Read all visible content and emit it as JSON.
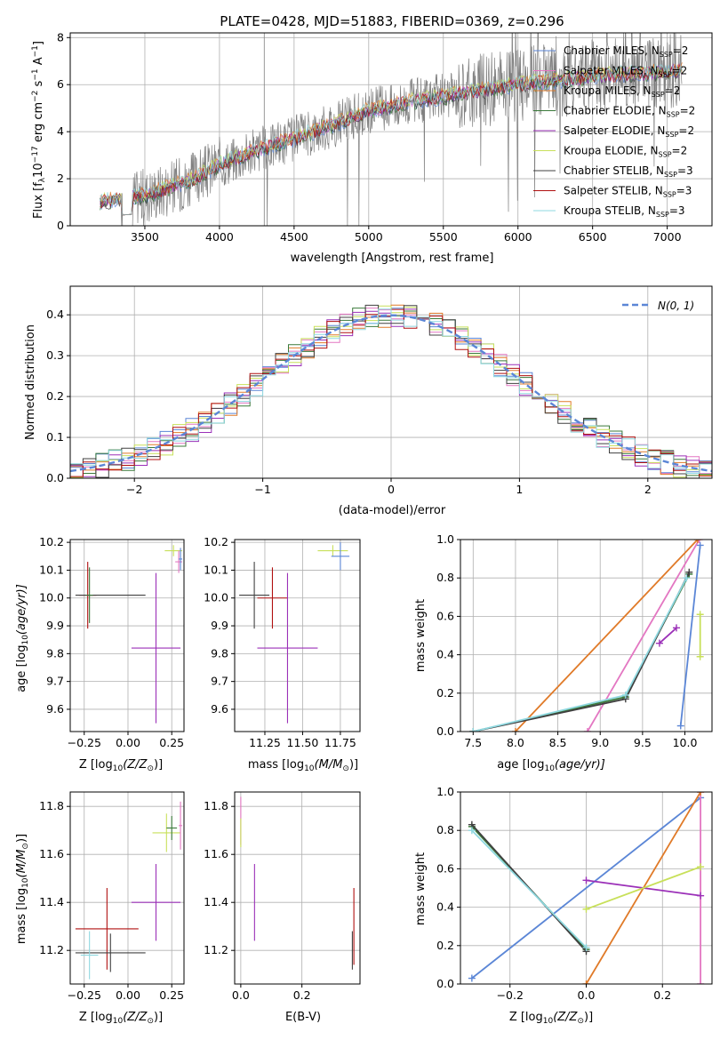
{
  "models": [
    {
      "label": "Chabrier MILES, N",
      "sub": "SSP",
      "tail": "=2",
      "color": "#5b86d6"
    },
    {
      "label": "Salpeter MILES, N",
      "sub": "SSP",
      "tail": "=2",
      "color": "#e377c2"
    },
    {
      "label": "Kroupa MILES, N",
      "sub": "SSP",
      "tail": "=2",
      "color": "#e07a28"
    },
    {
      "label": "Chabrier ELODIE, N",
      "sub": "SSP",
      "tail": "=2",
      "color": "#3a7a3a"
    },
    {
      "label": "Salpeter ELODIE, N",
      "sub": "SSP",
      "tail": "=2",
      "color": "#9b30b8"
    },
    {
      "label": "Kroupa ELODIE, N",
      "sub": "SSP",
      "tail": "=2",
      "color": "#c8e05a"
    },
    {
      "label": "Chabrier STELIB, N",
      "sub": "SSP",
      "tail": "=3",
      "color": "#404040"
    },
    {
      "label": "Salpeter STELIB, N",
      "sub": "SSP",
      "tail": "=3",
      "color": "#b01010"
    },
    {
      "label": "Kroupa STELIB, N",
      "sub": "SSP",
      "tail": "=3",
      "color": "#8fd8e0"
    }
  ],
  "chart_data": [
    {
      "id": "spectrum",
      "type": "line",
      "title": "PLATE=0428, MJD=51883, FIBERID=0369, z=0.296",
      "xlabel": "wavelength [Angstrom, rest frame]",
      "ylabel": "Flux [f",
      "ylabel_sub": "λ",
      "ylabel_tail": "10",
      "ylabel_exp": "−17",
      "ylabel_units": " erg cm",
      "ylabel_exp2": "−2",
      "ylabel_units2": " s",
      "ylabel_exp3": "−1",
      "ylabel_units3": " A",
      "ylabel_exp4": "−1",
      "ylabel_end": "]",
      "xlim": [
        3000,
        7300
      ],
      "ylim": [
        0,
        8.2
      ],
      "xticks": [
        "3500",
        "4000",
        "4500",
        "5000",
        "5500",
        "6000",
        "6500",
        "7000"
      ],
      "yticks": [
        "0",
        "2",
        "4",
        "6",
        "8"
      ],
      "continuum": {
        "x": [
          3200,
          3500,
          3800,
          4000,
          4200,
          4500,
          4800,
          5000,
          5300,
          5600,
          6000,
          6300,
          6600,
          6900,
          7100
        ],
        "y": [
          1.0,
          1.3,
          1.9,
          2.6,
          3.1,
          3.7,
          4.4,
          4.9,
          5.3,
          5.6,
          6.0,
          6.2,
          6.4,
          6.5,
          6.6
        ]
      }
    },
    {
      "id": "residuals",
      "type": "line",
      "xlabel": "(data-model)/error",
      "ylabel": "Normed distribution",
      "xlim": [
        -2.5,
        2.5
      ],
      "ylim": [
        0,
        0.47
      ],
      "xticks": [
        "−2",
        "−1",
        "0",
        "1",
        "2"
      ],
      "yticks": [
        "0.0",
        "0.1",
        "0.2",
        "0.3",
        "0.4"
      ],
      "legend": "N(0, 1)"
    },
    {
      "id": "age_vs_Z",
      "type": "scatter",
      "xlabel": "Z [log",
      "xlabel_sub": "10",
      "xlabel_tail": "(Z/Z",
      "xlabel_sub2": "⊙",
      "xlabel_end": ")]",
      "ylabel": "age  [log",
      "ylabel_sub": "10",
      "ylabel_tail": "(age/yr)]",
      "xlim": [
        -0.33,
        0.32
      ],
      "ylim": [
        9.52,
        10.21
      ],
      "xticks": [
        "−0.25",
        "0.00",
        "0.25"
      ],
      "yticks": [
        "9.6",
        "9.7",
        "9.8",
        "9.9",
        "10.0",
        "10.1",
        "10.2"
      ],
      "points": [
        {
          "x": -0.23,
          "y": 10.01,
          "xerr": 0.05,
          "yerr": 0.12,
          "model": 7
        },
        {
          "x": -0.1,
          "y": 10.01,
          "xerr": 0.2,
          "yerr": 0.0,
          "model": 6
        },
        {
          "x": -0.22,
          "y": 10.01,
          "xerr": 0.02,
          "yerr": 0.1,
          "model": 3
        },
        {
          "x": 0.16,
          "y": 9.82,
          "xerr": 0.14,
          "yerr": 0.27,
          "model": 4
        },
        {
          "x": 0.26,
          "y": 10.17,
          "xerr": 0.05,
          "yerr": 0.02,
          "model": 5
        },
        {
          "x": 0.29,
          "y": 10.13,
          "xerr": 0.02,
          "yerr": 0.04,
          "model": 1
        },
        {
          "x": 0.3,
          "y": 10.14,
          "xerr": 0.01,
          "yerr": 0.04,
          "model": 0
        }
      ]
    },
    {
      "id": "age_vs_mass",
      "type": "scatter",
      "xlabel": "mass [log",
      "xlabel_sub": "10",
      "xlabel_tail": "(M/M",
      "xlabel_sub2": "⊙",
      "xlabel_end": ")]",
      "xlim": [
        11.05,
        11.88
      ],
      "ylim": [
        9.52,
        10.21
      ],
      "xticks": [
        "11.25",
        "11.50",
        "11.75"
      ],
      "yticks": [
        "9.6",
        "9.7",
        "9.8",
        "9.9",
        "10.0",
        "10.1",
        "10.2"
      ],
      "points": [
        {
          "x": 11.18,
          "y": 10.01,
          "xerr": 0.1,
          "yerr": 0.12,
          "model": 6
        },
        {
          "x": 11.3,
          "y": 10.0,
          "xerr": 0.1,
          "yerr": 0.11,
          "model": 7
        },
        {
          "x": 11.4,
          "y": 9.82,
          "xerr": 0.2,
          "yerr": 0.27,
          "model": 4
        },
        {
          "x": 11.7,
          "y": 10.17,
          "xerr": 0.1,
          "yerr": 0.02,
          "model": 5
        },
        {
          "x": 11.75,
          "y": 10.15,
          "xerr": 0.06,
          "yerr": 0.05,
          "model": 0
        }
      ]
    },
    {
      "id": "weight_vs_age",
      "type": "line",
      "xlabel": "age  [log",
      "xlabel_sub": "10",
      "xlabel_tail": "(age/yr)]",
      "ylabel": "mass weight",
      "xlim": [
        7.35,
        10.32
      ],
      "ylim": [
        0,
        1.0
      ],
      "xticks": [
        "7.5",
        "8.0",
        "8.5",
        "9.0",
        "9.5",
        "10.0"
      ],
      "yticks": [
        "0.0",
        "0.2",
        "0.4",
        "0.6",
        "0.8",
        "1.0"
      ],
      "series": [
        {
          "model": 0,
          "x": [
            9.95,
            10.18
          ],
          "y": [
            0.03,
            0.97
          ]
        },
        {
          "model": 1,
          "x": [
            8.85,
            10.17
          ],
          "y": [
            0.0,
            1.0
          ]
        },
        {
          "model": 2,
          "x": [
            8.0,
            10.15
          ],
          "y": [
            0.0,
            1.0
          ]
        },
        {
          "model": 3,
          "x": [
            7.5,
            9.3,
            10.05
          ],
          "y": [
            0.0,
            0.18,
            0.82
          ]
        },
        {
          "model": 4,
          "x": [
            9.7,
            9.9
          ],
          "y": [
            0.46,
            0.54
          ]
        },
        {
          "model": 5,
          "x": [
            10.18,
            10.18
          ],
          "y": [
            0.39,
            0.61
          ]
        },
        {
          "model": 6,
          "x": [
            7.5,
            9.3,
            10.05
          ],
          "y": [
            0.0,
            0.17,
            0.83
          ]
        },
        {
          "model": 8,
          "x": [
            7.5,
            9.3,
            10.02
          ],
          "y": [
            0.0,
            0.19,
            0.8
          ]
        }
      ]
    },
    {
      "id": "mass_vs_Z",
      "type": "scatter",
      "xlabel": "Z [log",
      "xlabel_sub": "10",
      "xlabel_tail": "(Z/Z",
      "xlabel_sub2": "⊙",
      "xlabel_end": ")]",
      "ylabel": "mass [log",
      "ylabel_sub": "10",
      "ylabel_tail": "(M/M",
      "ylabel_sub2": "⊙",
      "ylabel_end": ")]",
      "xlim": [
        -0.33,
        0.32
      ],
      "ylim": [
        11.06,
        11.86
      ],
      "xticks": [
        "−0.25",
        "0.00",
        "0.25"
      ],
      "yticks": [
        "11.2",
        "11.4",
        "11.6",
        "11.8"
      ],
      "points": [
        {
          "x": -0.12,
          "y": 11.29,
          "xerr": 0.18,
          "yerr": 0.17,
          "model": 7
        },
        {
          "x": -0.1,
          "y": 11.19,
          "xerr": 0.2,
          "yerr": 0.08,
          "model": 6
        },
        {
          "x": -0.22,
          "y": 11.18,
          "xerr": 0.05,
          "yerr": 0.1,
          "model": 8
        },
        {
          "x": 0.16,
          "y": 11.4,
          "xerr": 0.14,
          "yerr": 0.16,
          "model": 4
        },
        {
          "x": 0.22,
          "y": 11.69,
          "xerr": 0.08,
          "yerr": 0.08,
          "model": 5
        },
        {
          "x": 0.25,
          "y": 11.71,
          "xerr": 0.03,
          "yerr": 0.05,
          "model": 3
        },
        {
          "x": 0.3,
          "y": 11.72,
          "xerr": 0.01,
          "yerr": 0.1,
          "model": 1
        }
      ]
    },
    {
      "id": "mass_vs_ebv",
      "type": "scatter",
      "xlabel": "E(B-V)",
      "xlim": [
        -0.02,
        0.39
      ],
      "ylim": [
        11.06,
        11.86
      ],
      "xticks": [
        "0.0",
        "0.2"
      ],
      "yticks": [
        "11.2",
        "11.4",
        "11.6",
        "11.8"
      ],
      "points": [
        {
          "x": 0.0,
          "y": 11.74,
          "xerr": 0.0,
          "yerr": 0.1,
          "model": 1
        },
        {
          "x": 0.0,
          "y": 11.69,
          "xerr": 0.0,
          "yerr": 0.06,
          "model": 5
        },
        {
          "x": 0.045,
          "y": 11.4,
          "xerr": 0.0,
          "yerr": 0.16,
          "model": 4
        },
        {
          "x": 0.37,
          "y": 11.3,
          "xerr": 0.0,
          "yerr": 0.16,
          "model": 7
        },
        {
          "x": 0.365,
          "y": 11.2,
          "xerr": 0.0,
          "yerr": 0.08,
          "model": 6
        }
      ]
    },
    {
      "id": "weight_vs_Z",
      "type": "line",
      "xlabel": "Z [log",
      "xlabel_sub": "10",
      "xlabel_tail": "(Z/Z",
      "xlabel_sub2": "⊙",
      "xlabel_end": ")]",
      "ylabel": "mass weight",
      "xlim": [
        -0.33,
        0.33
      ],
      "ylim": [
        0,
        1.0
      ],
      "xticks": [
        "−0.2",
        "0.0",
        "0.2"
      ],
      "yticks": [
        "0.0",
        "0.2",
        "0.4",
        "0.6",
        "0.8",
        "1.0"
      ],
      "series": [
        {
          "model": 0,
          "x": [
            -0.3,
            0.3
          ],
          "y": [
            0.03,
            0.97
          ]
        },
        {
          "model": 1,
          "x": [
            0.3,
            0.3
          ],
          "y": [
            0.0,
            1.0
          ]
        },
        {
          "model": 2,
          "x": [
            0.0,
            0.3
          ],
          "y": [
            0.0,
            1.0
          ]
        },
        {
          "model": 3,
          "x": [
            -0.3,
            0.0
          ],
          "y": [
            0.82,
            0.18
          ]
        },
        {
          "model": 4,
          "x": [
            0.0,
            0.3
          ],
          "y": [
            0.54,
            0.46
          ]
        },
        {
          "model": 5,
          "x": [
            0.0,
            0.3
          ],
          "y": [
            0.39,
            0.61
          ]
        },
        {
          "model": 6,
          "x": [
            -0.3,
            0.0
          ],
          "y": [
            0.83,
            0.17
          ]
        },
        {
          "model": 8,
          "x": [
            -0.3,
            0.0
          ],
          "y": [
            0.8,
            0.19
          ]
        }
      ]
    }
  ]
}
